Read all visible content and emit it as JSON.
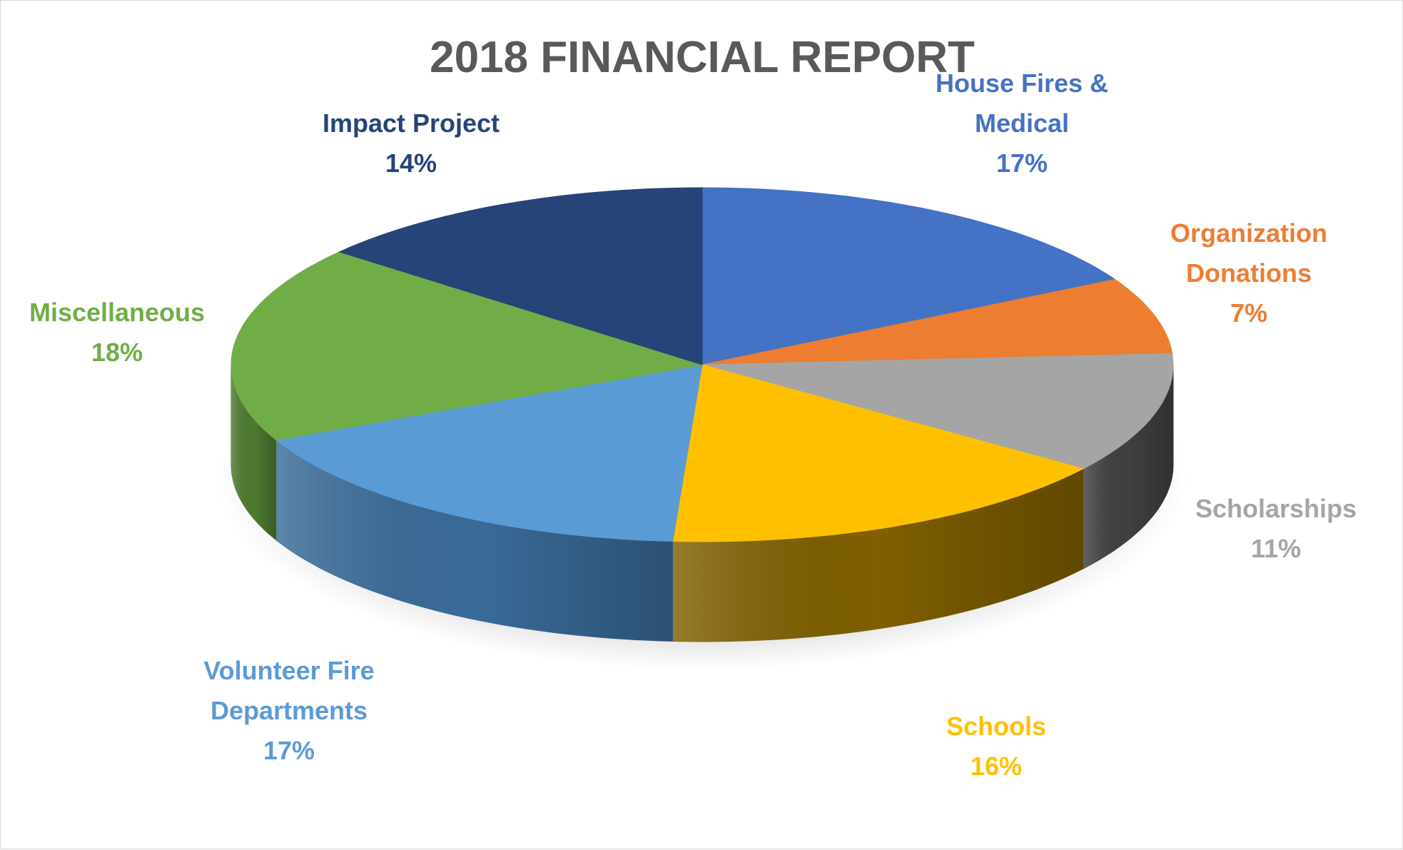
{
  "chart_data": {
    "type": "pie",
    "style": "3d",
    "title": "2018 FINANCIAL REPORT",
    "slices": [
      {
        "name": "House Fires & Medical",
        "label_lines": [
          "House Fires &",
          "Medical"
        ],
        "value": 17,
        "percent_label": "17%",
        "color": "#4472C4",
        "side_color": "#2F528F"
      },
      {
        "name": "Organization Donations",
        "label_lines": [
          "Organization",
          "Donations"
        ],
        "value": 7,
        "percent_label": "7%",
        "color": "#ED7D31",
        "side_color": "#A5521F"
      },
      {
        "name": "Scholarships",
        "label_lines": [
          "Scholarships"
        ],
        "value": 11,
        "percent_label": "11%",
        "color": "#A5A5A5",
        "side_color": "#404040"
      },
      {
        "name": "Schools",
        "label_lines": [
          "Schools"
        ],
        "value": 16,
        "percent_label": "16%",
        "color": "#FFC000",
        "side_color": "#7F5F00"
      },
      {
        "name": "Volunteer Fire Departments",
        "label_lines": [
          "Volunteer Fire",
          "Departments"
        ],
        "value": 17,
        "percent_label": "17%",
        "color": "#5B9BD5",
        "side_color": "#3A6B99"
      },
      {
        "name": "Miscellaneous",
        "label_lines": [
          "Miscellaneous"
        ],
        "value": 18,
        "percent_label": "18%",
        "color": "#70AD47",
        "side_color": "#4E7A31"
      },
      {
        "name": "Impact Project",
        "label_lines": [
          "Impact Project"
        ],
        "value": 14,
        "percent_label": "14%",
        "color": "#264478",
        "side_color": "#1A2F54"
      }
    ],
    "label_colors": [
      "#4472C4",
      "#ED7D31",
      "#A5A5A5",
      "#FFC000",
      "#5B9BD5",
      "#70AD47",
      "#264478"
    ],
    "title_color": "#595959",
    "legend": "none",
    "data_labels": "category name and percentage, outside"
  }
}
